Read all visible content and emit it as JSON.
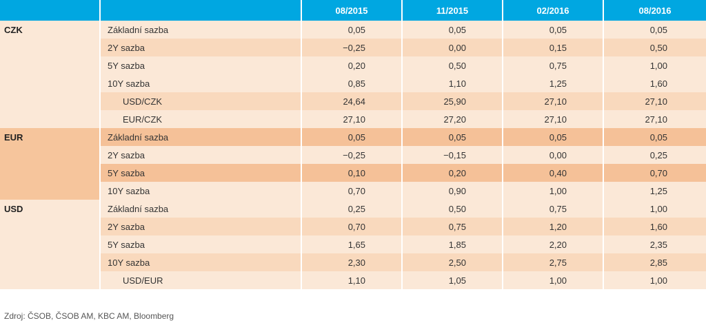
{
  "header": {
    "columns": [
      "08/2015",
      "11/2015",
      "02/2016",
      "08/2016"
    ]
  },
  "groups": [
    {
      "name": "CZK",
      "rows": [
        {
          "label": "Základní sazba",
          "values": [
            "0,05",
            "0,05",
            "0,05",
            "0,05"
          ]
        },
        {
          "label": "2Y sazba",
          "values": [
            "−0,25",
            "0,00",
            "0,15",
            "0,50"
          ]
        },
        {
          "label": "5Y sazba",
          "values": [
            "0,20",
            "0,50",
            "0,75",
            "1,00"
          ]
        },
        {
          "label": "10Y sazba",
          "values": [
            "0,85",
            "1,10",
            "1,25",
            "1,60"
          ]
        },
        {
          "label": "USD/CZK",
          "values": [
            "24,64",
            "25,90",
            "27,10",
            "27,10"
          ]
        },
        {
          "label": "EUR/CZK",
          "values": [
            "27,10",
            "27,20",
            "27,10",
            "27,10"
          ]
        }
      ]
    },
    {
      "name": "EUR",
      "rows": [
        {
          "label": "Základní sazba",
          "values": [
            "0,05",
            "0,05",
            "0,05",
            "0,05"
          ]
        },
        {
          "label": "2Y sazba",
          "values": [
            "−0,25",
            "−0,15",
            "0,00",
            "0,25"
          ]
        },
        {
          "label": "5Y sazba",
          "values": [
            "0,10",
            "0,20",
            "0,40",
            "0,70"
          ]
        },
        {
          "label": "10Y sazba",
          "values": [
            "0,70",
            "0,90",
            "1,00",
            "1,25"
          ]
        }
      ]
    },
    {
      "name": "USD",
      "rows": [
        {
          "label": "Základní sazba",
          "values": [
            "0,25",
            "0,50",
            "0,75",
            "1,00"
          ]
        },
        {
          "label": "2Y sazba",
          "values": [
            "0,70",
            "0,75",
            "1,20",
            "1,60"
          ]
        },
        {
          "label": "5Y sazba",
          "values": [
            "1,65",
            "1,85",
            "2,20",
            "2,35"
          ]
        },
        {
          "label": "10Y sazba",
          "values": [
            "2,30",
            "2,50",
            "2,75",
            "2,85"
          ]
        },
        {
          "label": "USD/EUR",
          "values": [
            "1,10",
            "1,05",
            "1,00",
            "1,00"
          ]
        }
      ]
    }
  ],
  "footer": {
    "source": "Zdroj: ČSOB, ČSOB AM, KBC AM, Bloomberg"
  },
  "colors": {
    "header": "#00a7e1",
    "row_light": "#fbe8d7",
    "row_medium": "#f9d9bd",
    "row_dark": "#f5c198"
  }
}
